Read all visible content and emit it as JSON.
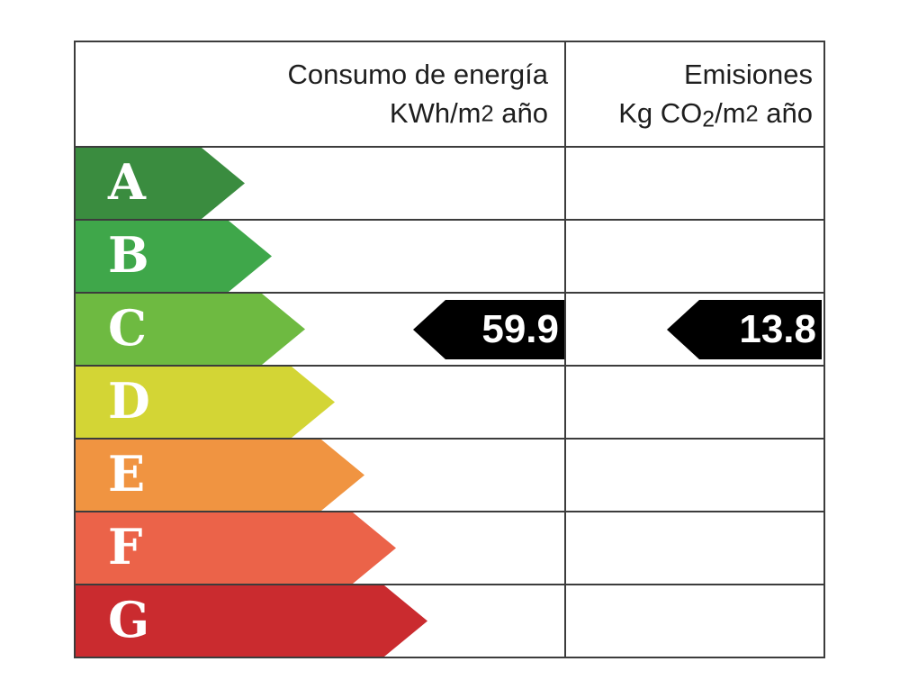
{
  "header": {
    "consumption_line1": "Consumo de energía",
    "consumption_line2_pre": "KWh/m",
    "consumption_line2_exp": "2",
    "consumption_line2_post": " año",
    "emissions_line1": "Emisiones",
    "emissions_line2_pre": "Kg CO",
    "emissions_line2_sub": "2",
    "emissions_line2_mid": "/m",
    "emissions_line2_exp": "2",
    "emissions_line2_post": " año"
  },
  "bands": [
    {
      "letter": "A",
      "color": "#3a8c3f"
    },
    {
      "letter": "B",
      "color": "#3fa74a"
    },
    {
      "letter": "C",
      "color": "#6eba41"
    },
    {
      "letter": "D",
      "color": "#d3d535"
    },
    {
      "letter": "E",
      "color": "#f09441"
    },
    {
      "letter": "F",
      "color": "#eb6349"
    },
    {
      "letter": "G",
      "color": "#ca2b2f"
    }
  ],
  "indicators": {
    "consumption_value": "59.9",
    "emissions_value": "13.8",
    "rating": "C",
    "arrow_color": "#000000",
    "text_color": "#ffffff"
  },
  "grid_color": "#3c3c3c",
  "chart_data": {
    "type": "bar",
    "categories": [
      "A",
      "B",
      "C",
      "D",
      "E",
      "F",
      "G"
    ],
    "band_colors": [
      "#3a8c3f",
      "#3fa74a",
      "#6eba41",
      "#d3d535",
      "#f09441",
      "#eb6349",
      "#ca2b2f"
    ],
    "columns": [
      {
        "label": "Consumo de energía KWh/m2 año",
        "value": 59.9,
        "rating": "C"
      },
      {
        "label": "Emisiones Kg CO2/m2 año",
        "value": 13.8,
        "rating": "C"
      }
    ],
    "legend_position": "none",
    "grid": true
  }
}
